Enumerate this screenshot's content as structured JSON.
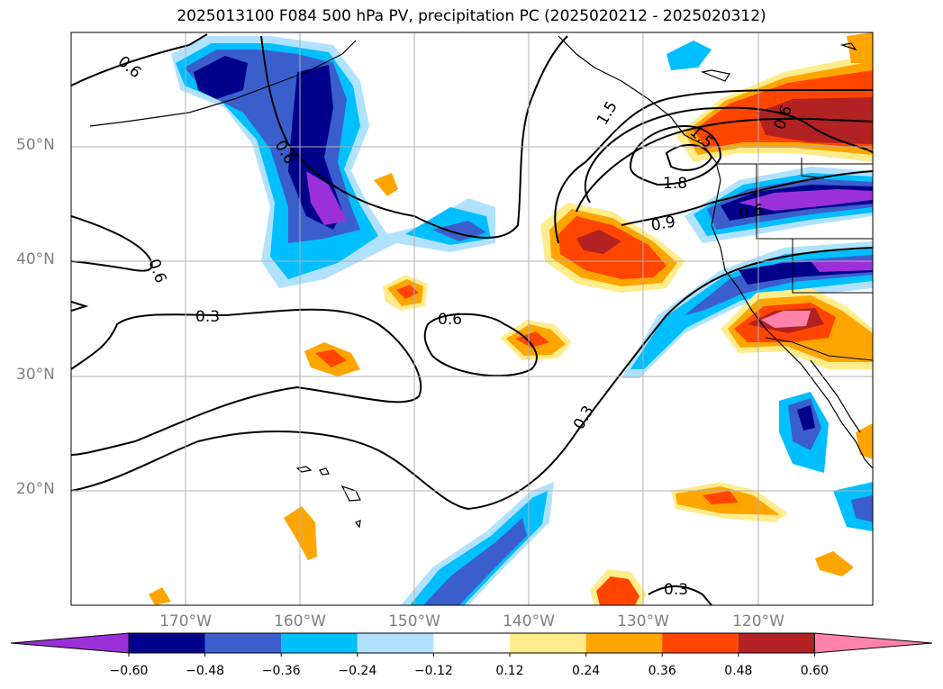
{
  "title": "2025013100 F084 500 hPa PV, precipitation PC (2025020212 - 2025020312)",
  "map": {
    "lat_labels": [
      "50°N",
      "40°N",
      "30°N",
      "20°N"
    ],
    "lon_labels": [
      "170°W",
      "160°W",
      "150°W",
      "140°W",
      "130°W",
      "120°W"
    ],
    "contour_labels": [
      "0.6",
      "0.6",
      "0.3",
      "0.6",
      "0.3",
      "0.3",
      "0.9",
      "1.8",
      "1.5",
      "1.5",
      "0.6",
      "0.6",
      "0.6"
    ],
    "contour_line_color": "#000000",
    "coastline_color": "#000000",
    "grid": true
  },
  "colorbar": {
    "ticks": [
      "−0.60",
      "−0.48",
      "−0.36",
      "−0.24",
      "−0.12",
      "0.12",
      "0.24",
      "0.36",
      "0.48",
      "0.60"
    ],
    "colors": [
      "#9b30d9",
      "#00008b",
      "#3a5fcd",
      "#00bfff",
      "#b0e2ff",
      "#ffffff",
      "#ffec8b",
      "#ffa500",
      "#ff4500",
      "#b22222",
      "#ff82ab"
    ],
    "extend": "both"
  }
}
